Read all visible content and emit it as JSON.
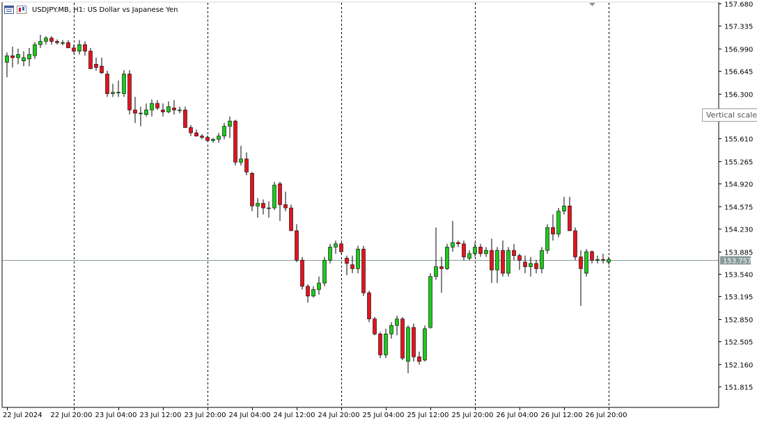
{
  "header": {
    "symbol": "USDJPY.MB",
    "timeframe": "H1:",
    "description": "US Dollar vs Japanese Yen"
  },
  "tooltip": {
    "text": "Vertical scale"
  },
  "current_price": "153.757",
  "colors": {
    "bull": "#1ec81e",
    "bear": "#e3141e",
    "wick": "#000000",
    "price_line": "#8a9a9a",
    "price_tag_bg": "#8a9a9a",
    "background": "#ffffff"
  },
  "chart_data": {
    "type": "candlestick",
    "symbol": "USDJPY.MB",
    "period": "H1",
    "ylim": [
      151.64,
      157.68
    ],
    "yticks": [
      "157.680",
      "157.335",
      "156.990",
      "156.645",
      "156.300",
      "155.955",
      "155.610",
      "155.265",
      "154.920",
      "154.575",
      "154.230",
      "153.885",
      "153.540",
      "153.195",
      "152.850",
      "152.505",
      "152.160",
      "151.815"
    ],
    "xticks": [
      {
        "label": "22 Jul 2024",
        "index": 0
      },
      {
        "label": "22 Jul 20:00",
        "index": 12
      },
      {
        "label": "23 Jul 04:00",
        "index": 20
      },
      {
        "label": "23 Jul 12:00",
        "index": 28
      },
      {
        "label": "23 Jul 20:00",
        "index": 36
      },
      {
        "label": "24 Jul 04:00",
        "index": 44
      },
      {
        "label": "24 Jul 12:00",
        "index": 52
      },
      {
        "label": "24 Jul 20:00",
        "index": 60
      },
      {
        "label": "25 Jul 04:00",
        "index": 68
      },
      {
        "label": "25 Jul 12:00",
        "index": 76
      },
      {
        "label": "25 Jul 20:00",
        "index": 84
      },
      {
        "label": "26 Jul 04:00",
        "index": 92
      },
      {
        "label": "26 Jul 12:00",
        "index": 100
      },
      {
        "label": "26 Jul 20:00",
        "index": 108
      }
    ],
    "day_separators": [
      12,
      36,
      60,
      84,
      108
    ],
    "ohlc": [
      [
        156.78,
        156.93,
        156.55,
        156.88
      ],
      [
        156.88,
        157.02,
        156.7,
        156.85
      ],
      [
        156.85,
        156.99,
        156.75,
        156.9
      ],
      [
        156.8,
        156.95,
        156.72,
        156.85
      ],
      [
        156.83,
        157.0,
        156.72,
        156.9
      ],
      [
        156.88,
        157.09,
        156.83,
        157.05
      ],
      [
        157.05,
        157.2,
        157.0,
        157.1
      ],
      [
        157.1,
        157.18,
        157.05,
        157.15
      ],
      [
        157.15,
        157.18,
        157.05,
        157.1
      ],
      [
        157.1,
        157.13,
        157.05,
        157.08
      ],
      [
        157.08,
        157.12,
        157.04,
        157.08
      ],
      [
        157.08,
        157.12,
        157.0,
        157.0
      ],
      [
        157.0,
        157.05,
        156.92,
        156.95
      ],
      [
        156.95,
        157.12,
        156.9,
        157.05
      ],
      [
        157.05,
        157.1,
        156.88,
        156.95
      ],
      [
        156.95,
        157.0,
        156.7,
        156.68
      ],
      [
        156.75,
        156.85,
        156.65,
        156.7
      ],
      [
        156.72,
        156.85,
        156.6,
        156.62
      ],
      [
        156.6,
        156.65,
        156.25,
        156.3
      ],
      [
        156.3,
        156.45,
        156.25,
        156.32
      ],
      [
        156.32,
        156.5,
        156.25,
        156.32
      ],
      [
        156.3,
        156.66,
        156.25,
        156.6
      ],
      [
        156.6,
        156.66,
        155.98,
        156.05
      ],
      [
        156.05,
        156.25,
        155.85,
        156.0
      ],
      [
        156.0,
        156.1,
        155.8,
        156.0
      ],
      [
        155.98,
        156.15,
        155.95,
        156.05
      ],
      [
        156.05,
        156.21,
        155.95,
        156.15
      ],
      [
        156.15,
        156.2,
        156.05,
        156.08
      ],
      [
        156.05,
        156.15,
        155.95,
        156.02
      ],
      [
        156.02,
        156.18,
        156.0,
        156.1
      ],
      [
        156.08,
        156.2,
        155.98,
        156.05
      ],
      [
        156.05,
        156.1,
        156.0,
        156.05
      ],
      [
        156.05,
        156.1,
        155.8,
        155.78
      ],
      [
        155.78,
        155.82,
        155.65,
        155.7
      ],
      [
        155.7,
        155.75,
        155.64,
        155.65
      ],
      [
        155.65,
        155.68,
        155.6,
        155.63
      ],
      [
        155.63,
        155.66,
        155.58,
        155.58
      ],
      [
        155.58,
        155.62,
        155.55,
        155.6
      ],
      [
        155.6,
        155.7,
        155.55,
        155.65
      ],
      [
        155.65,
        155.85,
        155.6,
        155.8
      ],
      [
        155.8,
        155.95,
        155.62,
        155.88
      ],
      [
        155.88,
        155.9,
        155.2,
        155.25
      ],
      [
        155.25,
        155.5,
        155.2,
        155.3
      ],
      [
        155.3,
        155.4,
        155.05,
        155.1
      ],
      [
        155.08,
        155.1,
        154.5,
        154.58
      ],
      [
        154.58,
        154.7,
        154.4,
        154.62
      ],
      [
        154.62,
        154.68,
        154.45,
        154.55
      ],
      [
        154.55,
        154.65,
        154.4,
        154.55
      ],
      [
        154.55,
        154.95,
        154.52,
        154.9
      ],
      [
        154.92,
        154.95,
        154.35,
        154.6
      ],
      [
        154.6,
        154.8,
        154.5,
        154.55
      ],
      [
        154.55,
        154.6,
        154.2,
        154.2
      ],
      [
        154.2,
        154.3,
        153.72,
        153.75
      ],
      [
        153.75,
        153.8,
        153.3,
        153.35
      ],
      [
        153.35,
        153.38,
        153.1,
        153.2
      ],
      [
        153.2,
        153.35,
        153.18,
        153.3
      ],
      [
        153.3,
        153.5,
        153.22,
        153.4
      ],
      [
        153.4,
        153.8,
        153.35,
        153.75
      ],
      [
        153.75,
        154.0,
        153.7,
        153.95
      ],
      [
        153.95,
        154.05,
        153.85,
        154.0
      ],
      [
        154.0,
        154.02,
        153.85,
        153.88
      ],
      [
        153.78,
        153.82,
        153.52,
        153.7
      ],
      [
        153.68,
        153.82,
        153.55,
        153.62
      ],
      [
        153.62,
        153.97,
        153.55,
        153.92
      ],
      [
        153.92,
        153.97,
        153.2,
        153.25
      ],
      [
        153.25,
        153.28,
        152.8,
        152.85
      ],
      [
        152.85,
        152.88,
        152.6,
        152.62
      ],
      [
        152.62,
        152.65,
        152.25,
        152.3
      ],
      [
        152.3,
        152.7,
        152.25,
        152.62
      ],
      [
        152.62,
        152.8,
        152.55,
        152.75
      ],
      [
        152.75,
        152.9,
        152.6,
        152.85
      ],
      [
        152.85,
        152.88,
        152.22,
        152.25
      ],
      [
        152.2,
        152.75,
        152.02,
        152.72
      ],
      [
        152.72,
        152.78,
        152.2,
        152.27
      ],
      [
        152.27,
        152.35,
        152.15,
        152.2
      ],
      [
        152.22,
        152.75,
        152.2,
        152.7
      ],
      [
        152.72,
        153.55,
        152.7,
        153.5
      ],
      [
        153.5,
        154.25,
        153.45,
        153.65
      ],
      [
        153.65,
        153.8,
        153.25,
        153.62
      ],
      [
        153.62,
        154.0,
        153.6,
        153.95
      ],
      [
        153.95,
        154.35,
        153.88,
        154.02
      ],
      [
        154.02,
        154.05,
        153.95,
        154.0
      ],
      [
        154.0,
        154.05,
        153.75,
        153.8
      ],
      [
        153.78,
        153.9,
        153.75,
        153.85
      ],
      [
        153.85,
        154.02,
        153.8,
        153.95
      ],
      [
        153.95,
        154.0,
        153.8,
        153.85
      ],
      [
        153.85,
        153.95,
        153.8,
        153.9
      ],
      [
        153.9,
        154.08,
        153.4,
        153.6
      ],
      [
        153.6,
        153.95,
        153.4,
        153.9
      ],
      [
        153.9,
        154.05,
        153.5,
        153.55
      ],
      [
        153.55,
        153.95,
        153.5,
        153.9
      ],
      [
        153.9,
        154.0,
        153.75,
        153.82
      ],
      [
        153.82,
        153.85,
        153.6,
        153.75
      ],
      [
        153.72,
        153.82,
        153.55,
        153.65
      ],
      [
        153.65,
        153.8,
        153.5,
        153.7
      ],
      [
        153.7,
        153.75,
        153.55,
        153.62
      ],
      [
        153.62,
        153.95,
        153.55,
        153.9
      ],
      [
        153.9,
        154.3,
        153.85,
        154.25
      ],
      [
        154.25,
        154.45,
        154.05,
        154.15
      ],
      [
        154.15,
        154.55,
        154.1,
        154.5
      ],
      [
        154.5,
        154.72,
        154.45,
        154.58
      ],
      [
        154.58,
        154.72,
        154.2,
        154.2
      ],
      [
        154.2,
        154.25,
        153.75,
        153.8
      ],
      [
        153.8,
        153.9,
        153.05,
        153.62
      ],
      [
        153.55,
        153.92,
        153.5,
        153.88
      ],
      [
        153.88,
        153.9,
        153.7,
        153.75
      ],
      [
        153.75,
        153.82,
        153.7,
        153.76
      ],
      [
        153.76,
        153.85,
        153.7,
        153.75
      ],
      [
        153.72,
        153.8,
        153.68,
        153.76
      ]
    ]
  }
}
